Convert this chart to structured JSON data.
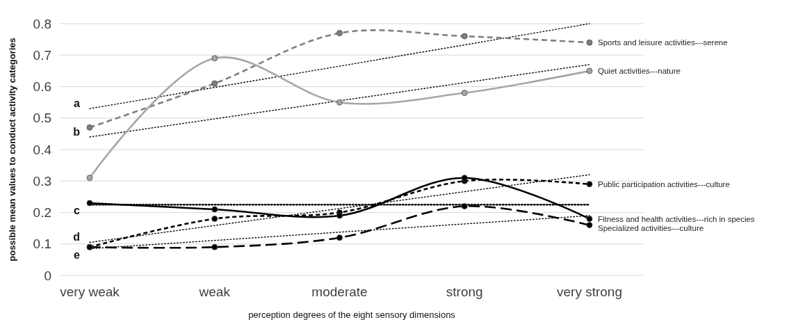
{
  "chart_data": {
    "type": "line",
    "xlabel": "perception degrees of the eight sensory dimensions",
    "ylabel": "possible mean values to conduct activity categories",
    "categories": [
      "very weak",
      "weak",
      "moderate",
      "strong",
      "very strong"
    ],
    "ylim": [
      0,
      0.8
    ],
    "yticks": [
      0,
      0.1,
      0.2,
      0.3,
      0.4,
      0.5,
      0.6,
      0.7,
      0.8
    ],
    "grid": "y",
    "marker": "circle",
    "series": [
      {
        "name": "Sports and leisure activities---serene",
        "color": "#7f7f7f",
        "line_style": "dashed",
        "values": [
          0.47,
          0.61,
          0.77,
          0.76,
          0.74
        ]
      },
      {
        "name": "Quiet activities---nature",
        "color": "#a6a6a6",
        "line_style": "solid",
        "values": [
          0.31,
          0.69,
          0.55,
          0.58,
          0.65
        ]
      },
      {
        "name": "Public participation activities---culture",
        "color": "#000000",
        "line_style": "dashed",
        "values": [
          0.09,
          0.18,
          0.2,
          0.3,
          0.29
        ]
      },
      {
        "name": "Fitness and health activities---rich in species",
        "color": "#000000",
        "line_style": "solid",
        "values": [
          0.23,
          0.21,
          0.19,
          0.31,
          0.18
        ]
      },
      {
        "name": "Specialized activities---culture",
        "color": "#000000",
        "line_style": "dashed",
        "values": [
          0.09,
          0.09,
          0.12,
          0.22,
          0.16
        ]
      },
      {
        "name": "a",
        "type": "line",
        "x": [
          "very weak",
          "very strong"
        ],
        "color": "#000000",
        "line_style": "dotted",
        "marker": "none",
        "values": [
          0.53,
          0.8
        ]
      },
      {
        "name": "b",
        "type": "line",
        "x": [
          "very weak",
          "very strong"
        ],
        "color": "#000000",
        "line_style": "dotted",
        "marker": "none",
        "values": [
          0.44,
          0.67
        ]
      },
      {
        "name": "c",
        "type": "line",
        "x": [
          "very weak",
          "very strong"
        ],
        "color": "#000000",
        "line_style": "dotted",
        "marker": "none",
        "values": [
          0.225,
          0.225
        ]
      },
      {
        "name": "d",
        "type": "line",
        "x": [
          "very weak",
          "very strong"
        ],
        "color": "#000000",
        "line_style": "dotted",
        "marker": "none",
        "values": [
          0.105,
          0.32
        ]
      },
      {
        "name": "e",
        "type": "line",
        "x": [
          "very weak",
          "very strong"
        ],
        "color": "#000000",
        "line_style": "dotted",
        "marker": "none",
        "values": [
          0.085,
          0.19
        ]
      }
    ]
  }
}
